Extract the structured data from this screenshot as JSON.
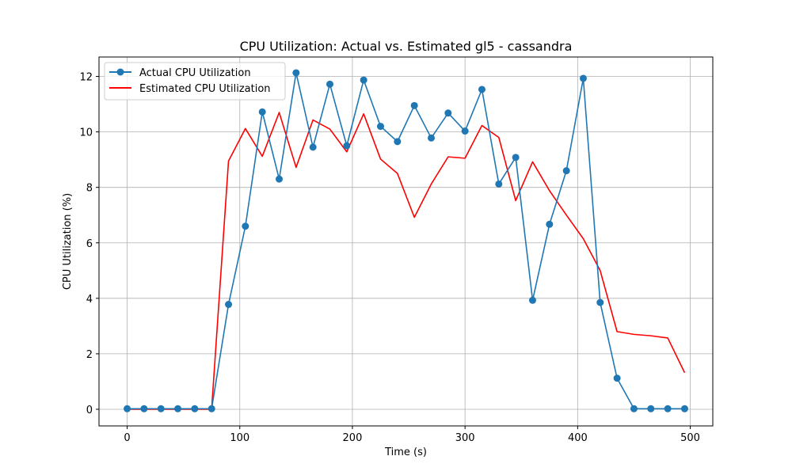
{
  "chart_data": {
    "type": "line",
    "title": "CPU Utilization: Actual vs. Estimated gl5 - cassandra",
    "xlabel": "Time (s)",
    "ylabel": "CPU Utilization (%)",
    "xlim": [
      -25,
      520
    ],
    "ylim": [
      -0.6,
      12.7
    ],
    "xticks": [
      0,
      100,
      200,
      300,
      400,
      500
    ],
    "yticks": [
      0,
      2,
      4,
      6,
      8,
      10,
      12
    ],
    "grid": true,
    "legend_position": "top-left",
    "series": [
      {
        "name": "Actual CPU Utilization",
        "color": "#1f77b4",
        "marker": "circle",
        "x": [
          0,
          15,
          30,
          45,
          60,
          75,
          90,
          105,
          120,
          135,
          150,
          165,
          180,
          195,
          210,
          225,
          240,
          255,
          270,
          285,
          300,
          315,
          330,
          345,
          360,
          375,
          390,
          405,
          420,
          435,
          450,
          465,
          480,
          495
        ],
        "y": [
          0.02,
          0.02,
          0.02,
          0.02,
          0.02,
          0.02,
          3.78,
          6.6,
          10.72,
          8.3,
          12.13,
          9.45,
          11.72,
          9.5,
          11.87,
          10.2,
          9.65,
          10.95,
          9.78,
          10.68,
          10.03,
          11.53,
          8.12,
          9.08,
          3.93,
          6.67,
          8.6,
          11.93,
          3.85,
          1.12,
          0.02,
          0.02,
          0.02,
          0.02
        ]
      },
      {
        "name": "Estimated CPU Utilization",
        "color": "#ff0000",
        "marker": "none",
        "x": [
          0,
          15,
          30,
          45,
          60,
          75,
          90,
          105,
          120,
          135,
          150,
          165,
          180,
          195,
          210,
          225,
          240,
          255,
          270,
          285,
          300,
          315,
          330,
          345,
          360,
          375,
          390,
          405,
          420,
          435,
          450,
          465,
          480,
          495
        ],
        "y": [
          0.0,
          0.0,
          0.0,
          0.0,
          0.0,
          0.0,
          8.95,
          10.12,
          9.12,
          10.7,
          8.72,
          10.43,
          10.1,
          9.28,
          10.65,
          9.02,
          8.5,
          6.92,
          8.12,
          9.1,
          9.05,
          10.23,
          9.8,
          7.52,
          8.92,
          7.88,
          7.0,
          6.15,
          5.0,
          2.8,
          2.7,
          2.65,
          2.57,
          1.32
        ]
      }
    ]
  }
}
